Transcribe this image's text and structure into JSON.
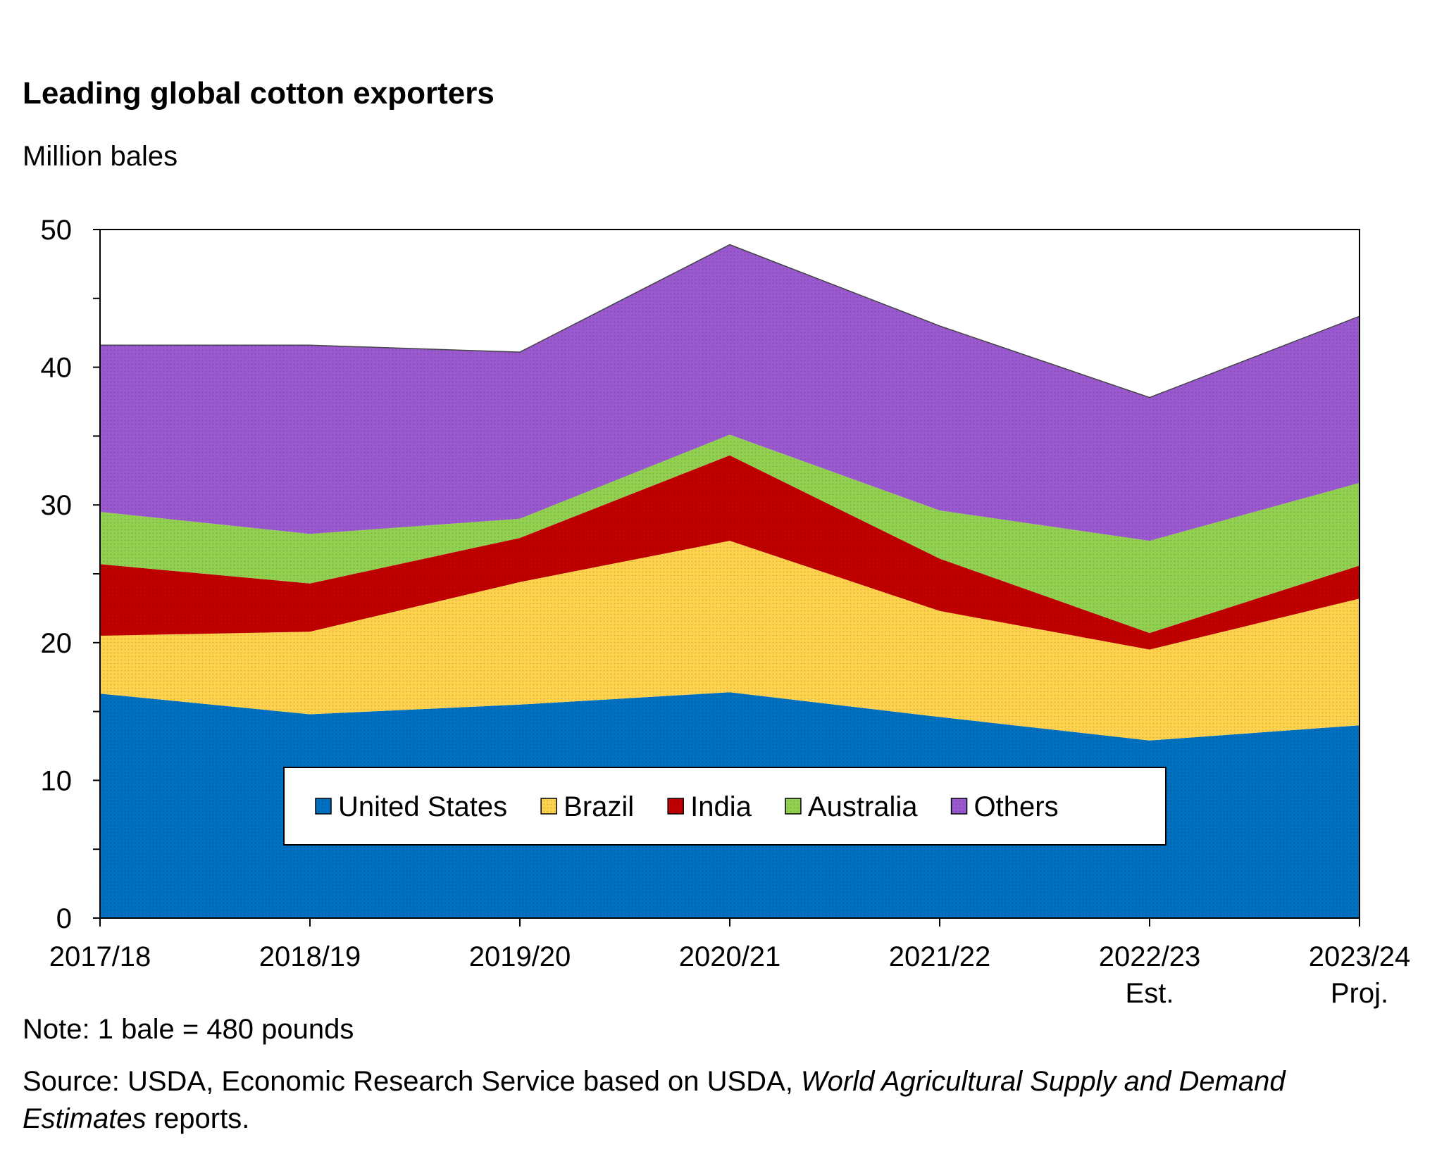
{
  "chart_data": {
    "type": "area",
    "stacked": true,
    "title": "Leading global cotton exporters",
    "ylabel": "Million bales",
    "ylim": [
      0,
      50
    ],
    "yticks": [
      0,
      10,
      20,
      30,
      40,
      50
    ],
    "categories": [
      {
        "label": "2017/18",
        "sublabel": ""
      },
      {
        "label": "2018/19",
        "sublabel": ""
      },
      {
        "label": "2019/20",
        "sublabel": ""
      },
      {
        "label": "2020/21",
        "sublabel": ""
      },
      {
        "label": "2021/22",
        "sublabel": ""
      },
      {
        "label": "2022/23",
        "sublabel": "Est."
      },
      {
        "label": "2023/24",
        "sublabel": "Proj."
      }
    ],
    "series": [
      {
        "name": "United States",
        "color": "#0070c0",
        "values": [
          16.3,
          14.8,
          15.5,
          16.4,
          14.6,
          12.9,
          14.0
        ]
      },
      {
        "name": "Brazil",
        "color": "#ffd24d",
        "values": [
          4.2,
          6.0,
          8.9,
          11.0,
          7.7,
          6.6,
          9.2
        ]
      },
      {
        "name": "India",
        "color": "#c00000",
        "values": [
          5.2,
          3.5,
          3.2,
          6.2,
          3.8,
          1.2,
          2.4
        ]
      },
      {
        "name": "Australia",
        "color": "#92d050",
        "values": [
          3.8,
          3.6,
          1.4,
          1.5,
          3.5,
          6.7,
          6.0
        ]
      },
      {
        "name": "Others",
        "color": "#9b59d0",
        "values": [
          12.1,
          13.7,
          12.1,
          13.8,
          13.4,
          10.4,
          12.1
        ]
      }
    ],
    "legend_position": "inside-bottom-center",
    "grid": false
  },
  "note": "Note: 1 bale = 480 pounds",
  "source": {
    "prefix": "Source: USDA, Economic Research Service based on USDA, ",
    "italic": "World Agricultural Supply and Demand Estimates",
    "suffix": " reports."
  }
}
